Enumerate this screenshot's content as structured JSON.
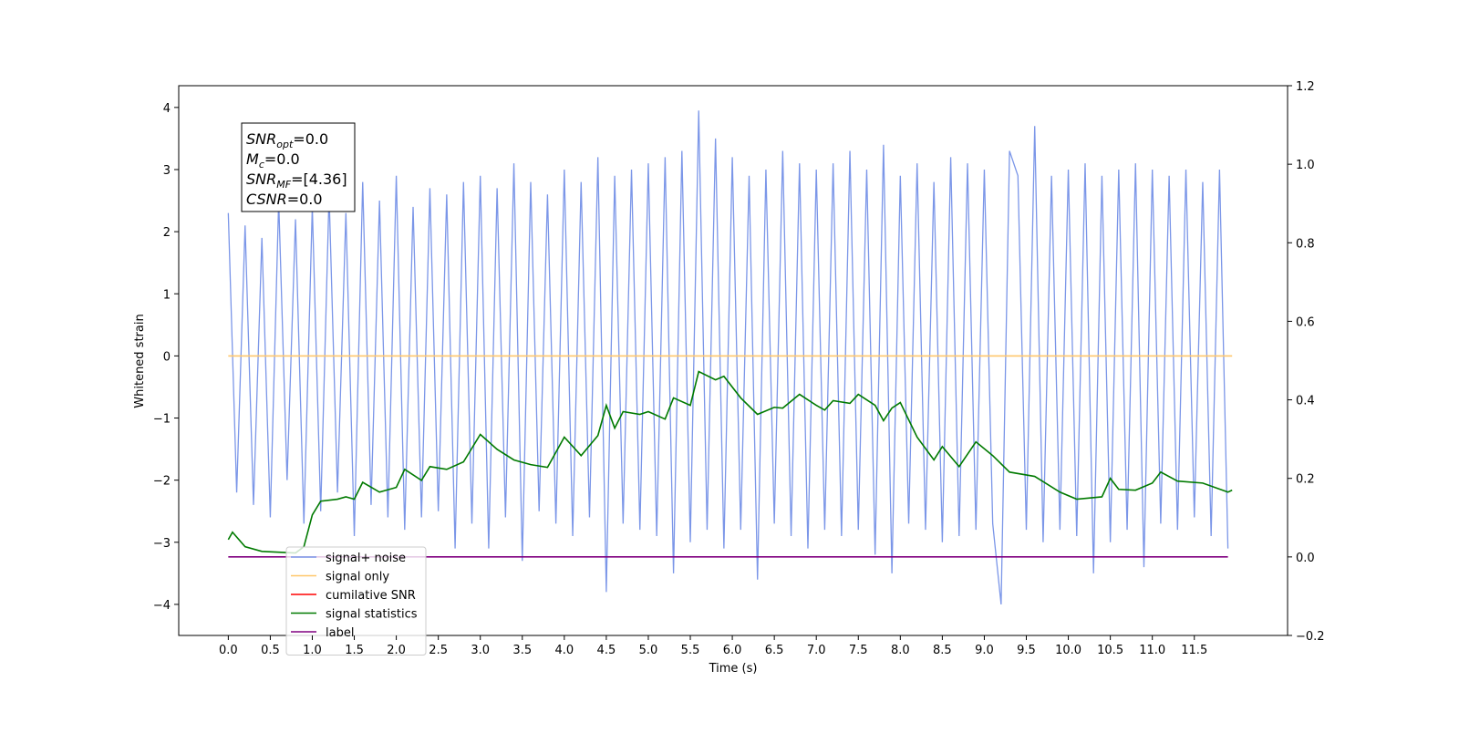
{
  "chart_data": {
    "type": "line",
    "xlabel": "Time (s)",
    "ylabel": "Whitened strain",
    "annotations": [
      {
        "symbol": "SNR",
        "sub": "opt",
        "text": "=0.0"
      },
      {
        "symbol": "M",
        "sub": "c",
        "text": "=0.0"
      },
      {
        "symbol": "SNR",
        "sub": "MF",
        "text": "=[4.36]"
      },
      {
        "symbol": "CSNR",
        "sub": null,
        "text": "=0.0"
      }
    ],
    "xlim": [
      -0.59,
      12.61
    ],
    "ylim": [
      -4.5,
      4.35
    ],
    "y2lim": [
      -0.2,
      1.2
    ],
    "xticks": [
      {
        "value": 0,
        "label": "0.0"
      },
      {
        "value": 0.5,
        "label": "0.5"
      },
      {
        "value": 1,
        "label": "1.0"
      },
      {
        "value": 1.5,
        "label": "1.5"
      },
      {
        "value": 2,
        "label": "2.0"
      },
      {
        "value": 2.5,
        "label": "2.5"
      },
      {
        "value": 3,
        "label": "3.0"
      },
      {
        "value": 3.5,
        "label": "3.5"
      },
      {
        "value": 4,
        "label": "4.0"
      },
      {
        "value": 4.5,
        "label": "4.5"
      },
      {
        "value": 5,
        "label": "5.0"
      },
      {
        "value": 5.5,
        "label": "5.5"
      },
      {
        "value": 6,
        "label": "6.0"
      },
      {
        "value": 6.5,
        "label": "6.5"
      },
      {
        "value": 7,
        "label": "7.0"
      },
      {
        "value": 7.5,
        "label": "7.5"
      },
      {
        "value": 8,
        "label": "8.0"
      },
      {
        "value": 8.5,
        "label": "8.5"
      },
      {
        "value": 9,
        "label": "9.0"
      },
      {
        "value": 9.5,
        "label": "9.5"
      },
      {
        "value": 10,
        "label": "10.0"
      },
      {
        "value": 10.5,
        "label": "10.5"
      },
      {
        "value": 11,
        "label": "11.0"
      },
      {
        "value": 11.5,
        "label": "11.5"
      }
    ],
    "yticks": [
      {
        "value": -4,
        "label": "−4"
      },
      {
        "value": -3,
        "label": "−3"
      },
      {
        "value": -2,
        "label": "−2"
      },
      {
        "value": -1,
        "label": "−1"
      },
      0,
      1,
      2,
      3,
      4
    ],
    "y2ticks": [
      {
        "value": -0.2,
        "label": "−0.2"
      },
      {
        "value": 0,
        "label": "0.0"
      },
      {
        "value": 0.2,
        "label": "0.2"
      },
      {
        "value": 0.4,
        "label": "0.4"
      },
      {
        "value": 0.6,
        "label": "0.6"
      },
      {
        "value": 0.8,
        "label": "0.8"
      },
      {
        "value": 1,
        "label": "1.0"
      },
      {
        "value": 1.2,
        "label": "1.2"
      }
    ],
    "series": [
      {
        "name": "signal+ noise",
        "color": "#7b96e8",
        "x": [
          0,
          0.1,
          0.2,
          0.3,
          0.4,
          0.5,
          0.6,
          0.7,
          0.8,
          0.9,
          1,
          1.1,
          1.2,
          1.3,
          1.4,
          1.5,
          1.6,
          1.7,
          1.8,
          1.9,
          2,
          2.1,
          2.2,
          2.3,
          2.4,
          2.5,
          2.6,
          2.7,
          2.8,
          2.9,
          3,
          3.1,
          3.2,
          3.3,
          3.4,
          3.5,
          3.6,
          3.7,
          3.8,
          3.9,
          4,
          4.1,
          4.2,
          4.3,
          4.4,
          4.5,
          4.6,
          4.7,
          4.8,
          4.9,
          5,
          5.1,
          5.2,
          5.3,
          5.4,
          5.5,
          5.6,
          5.7,
          5.8,
          5.9,
          6,
          6.1,
          6.2,
          6.3,
          6.4,
          6.5,
          6.6,
          6.7,
          6.8,
          6.9,
          7,
          7.1,
          7.2,
          7.3,
          7.4,
          7.5,
          7.6,
          7.7,
          7.8,
          7.9,
          8,
          8.1,
          8.2,
          8.3,
          8.4,
          8.5,
          8.6,
          8.7,
          8.8,
          8.9,
          9,
          9.1,
          9.2,
          9.3,
          9.4,
          9.5,
          9.6,
          9.7,
          9.8,
          9.9,
          10,
          10.1,
          10.2,
          10.3,
          10.4,
          10.5,
          10.6,
          10.7,
          10.8,
          10.9,
          11,
          11.1,
          11.2,
          11.3,
          11.4,
          11.5,
          11.6,
          11.7,
          11.8,
          11.9
        ],
        "values": [
          2.3,
          -2.2,
          2.1,
          -2.4,
          1.9,
          -2.6,
          2.5,
          -2.0,
          2.2,
          -2.7,
          2.4,
          -2.5,
          2.6,
          -2.2,
          2.3,
          -2.9,
          2.8,
          -2.4,
          2.5,
          -2.6,
          2.9,
          -2.8,
          2.4,
          -2.6,
          2.7,
          -2.5,
          2.6,
          -3.1,
          2.8,
          -2.7,
          2.9,
          -3.1,
          2.7,
          -2.6,
          3.1,
          -3.3,
          2.8,
          -2.5,
          2.6,
          -2.7,
          3.0,
          -2.9,
          2.8,
          -2.6,
          3.2,
          -3.8,
          2.9,
          -2.7,
          3.0,
          -2.8,
          3.1,
          -2.9,
          3.2,
          -3.5,
          3.3,
          -3.0,
          3.95,
          -2.8,
          3.5,
          -3.1,
          3.2,
          -2.8,
          2.9,
          -3.6,
          3.0,
          -2.7,
          3.3,
          -2.9,
          3.1,
          -3.1,
          3.0,
          -2.8,
          3.1,
          -2.9,
          3.3,
          -2.8,
          3.0,
          -3.2,
          3.4,
          -3.5,
          2.9,
          -2.7,
          3.1,
          -2.8,
          2.8,
          -3.0,
          3.2,
          -2.9,
          3.1,
          -2.8,
          3.0,
          -2.7,
          -4.0,
          3.3,
          2.9,
          -2.8,
          3.7,
          -3.0,
          2.9,
          -2.8,
          3.0,
          -2.9,
          3.1,
          -3.5,
          2.9,
          -3.0,
          3.0,
          -2.8,
          3.1,
          -3.4,
          3.0,
          -2.7,
          2.9,
          -2.8,
          3.0,
          -2.6,
          2.8,
          -2.9,
          3.0,
          -3.1
        ]
      },
      {
        "name": "signal only",
        "color": "#ffc76b",
        "x": [
          0,
          11.95
        ],
        "values": [
          0,
          0
        ]
      },
      {
        "name": "cumilative SNR",
        "color": "#ff0000",
        "axis": "y2",
        "x": [],
        "values": []
      },
      {
        "name": "signal statistics",
        "color": "#007a00",
        "axis": "y2",
        "x": [
          0,
          0.05,
          0.2,
          0.4,
          0.6,
          0.8,
          0.9,
          1.0,
          1.1,
          1.3,
          1.4,
          1.5,
          1.6,
          1.8,
          2.0,
          2.1,
          2.3,
          2.4,
          2.6,
          2.8,
          3.0,
          3.2,
          3.4,
          3.6,
          3.8,
          4.0,
          4.2,
          4.4,
          4.5,
          4.6,
          4.7,
          4.9,
          5.0,
          5.2,
          5.3,
          5.5,
          5.6,
          5.8,
          5.9,
          6.1,
          6.3,
          6.5,
          6.6,
          6.8,
          7.0,
          7.1,
          7.2,
          7.4,
          7.5,
          7.7,
          7.8,
          7.9,
          8.0,
          8.2,
          8.4,
          8.5,
          8.7,
          8.9,
          9.1,
          9.3,
          9.6,
          9.9,
          10.1,
          10.4,
          10.5,
          10.6,
          10.8,
          11.0,
          11.1,
          11.3,
          11.6,
          11.9,
          11.95
        ],
        "values": [
          0.044,
          0.063,
          0.026,
          0.014,
          0.012,
          0.01,
          0.026,
          0.107,
          0.142,
          0.147,
          0.153,
          0.147,
          0.19,
          0.165,
          0.177,
          0.223,
          0.195,
          0.23,
          0.223,
          0.242,
          0.312,
          0.274,
          0.247,
          0.235,
          0.228,
          0.305,
          0.258,
          0.309,
          0.386,
          0.328,
          0.37,
          0.363,
          0.37,
          0.351,
          0.405,
          0.386,
          0.472,
          0.451,
          0.46,
          0.405,
          0.363,
          0.381,
          0.379,
          0.414,
          0.386,
          0.374,
          0.398,
          0.391,
          0.414,
          0.386,
          0.347,
          0.379,
          0.393,
          0.305,
          0.247,
          0.281,
          0.23,
          0.293,
          0.258,
          0.216,
          0.205,
          0.165,
          0.147,
          0.153,
          0.2,
          0.172,
          0.17,
          0.188,
          0.216,
          0.193,
          0.188,
          0.165,
          0.17
        ]
      },
      {
        "name": "label",
        "color": "#800080",
        "axis": "y2",
        "x": [
          0,
          11.9
        ],
        "values": [
          0,
          0
        ]
      }
    ]
  }
}
